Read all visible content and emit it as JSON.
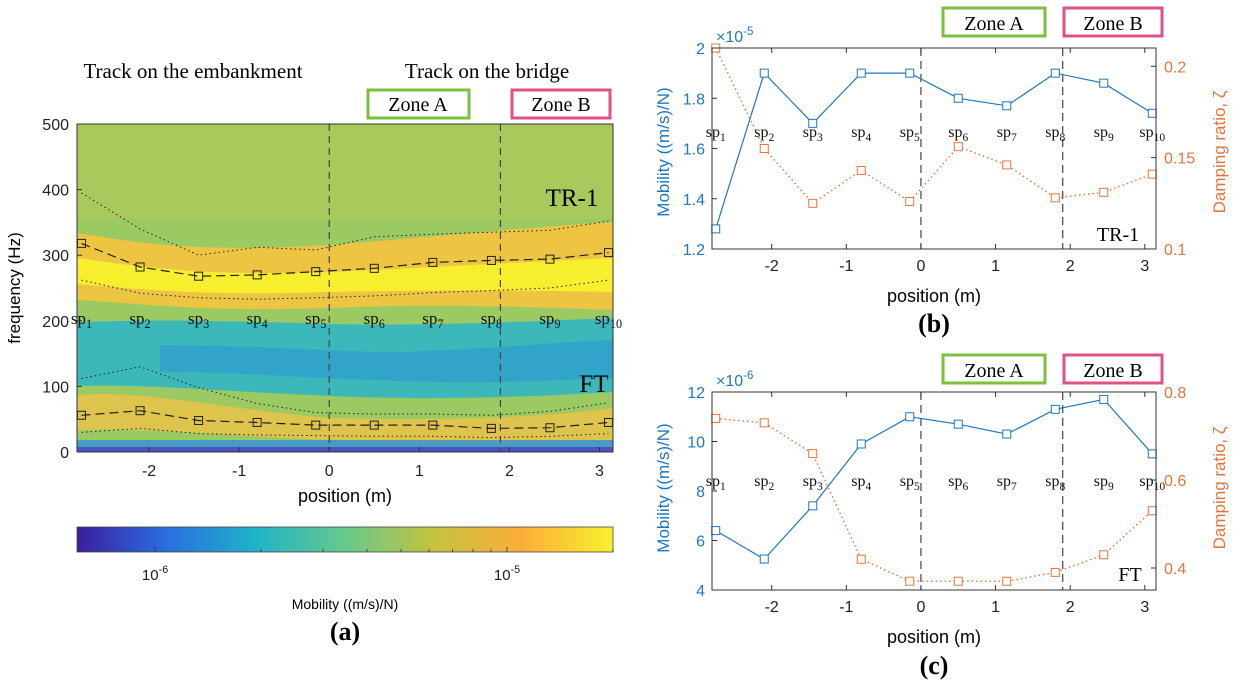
{
  "chart_data": [
    {
      "panel_label": "(a)",
      "type": "heatmap",
      "title": "",
      "xlabel": "position (m)",
      "ylabel": "frequency (Hz)",
      "xlim": [
        -2.8,
        3.15
      ],
      "ylim": [
        0,
        500
      ],
      "xticks": [
        "-2",
        "-1",
        "0",
        "1",
        "2",
        "3"
      ],
      "yticks": [
        "0",
        "100",
        "200",
        "300",
        "400",
        "500"
      ],
      "section_labels": {
        "embankment": "Track on the embankment",
        "bridge": "Track on the bridge"
      },
      "zones": [
        {
          "label": "Zone A",
          "color": "#7cbf3c"
        },
        {
          "label": "Zone B",
          "color": "#e0508a"
        }
      ],
      "zone_boundaries_m": [
        0,
        1.9
      ],
      "sensor_labels": [
        "sp1",
        "sp2",
        "sp3",
        "sp4",
        "sp5",
        "sp6",
        "sp7",
        "sp8",
        "sp9",
        "sp10"
      ],
      "positions_m": [
        -2.75,
        -2.1,
        -1.45,
        -0.8,
        -0.15,
        0.5,
        1.15,
        1.8,
        2.45,
        3.1
      ],
      "modes": [
        {
          "name": "TR-1",
          "peak_hz": [
            318,
            282,
            268,
            270,
            275,
            280,
            289,
            292,
            294,
            304
          ],
          "band_upper_hz": [
            395,
            340,
            300,
            312,
            308,
            328,
            332,
            335,
            338,
            352
          ],
          "band_lower_hz": [
            262,
            242,
            235,
            233,
            235,
            238,
            243,
            246,
            250,
            262
          ]
        },
        {
          "name": "FT",
          "peak_hz": [
            56,
            63,
            48,
            45,
            41,
            41,
            41,
            36,
            37,
            45
          ],
          "band_upper_hz": [
            112,
            130,
            98,
            74,
            60,
            58,
            58,
            56,
            62,
            75
          ],
          "band_lower_hz": [
            30,
            36,
            28,
            26,
            25,
            24,
            24,
            22,
            24,
            28
          ]
        }
      ],
      "colorbar": {
        "label": "Mobility ((m/s)/N)",
        "scale": "log",
        "range": [
          6e-07,
          2e-05
        ],
        "ticks": [
          "10",
          "10"
        ],
        "tick_exponents": [
          "-6",
          "-5"
        ],
        "tick_values": [
          1e-06,
          1e-05
        ],
        "colors": [
          "#3b1f9e",
          "#2a6ee0",
          "#1fb3c8",
          "#67c98d",
          "#c5c23f",
          "#fdae3a",
          "#f7f12b"
        ]
      }
    },
    {
      "panel_label": "(b)",
      "type": "line",
      "mode_label": "TR-1",
      "xlabel": "position (m)",
      "ylabel_left": "Mobility ((m/s)/N)",
      "ylabel_right": "Damping ratio, ζ",
      "xlim": [
        -2.8,
        3.15
      ],
      "ylim_left": [
        1.2e-05,
        2e-05
      ],
      "ylim_right": [
        0.1,
        0.21
      ],
      "left_exponent_base": "×10",
      "left_exponent_power": "-5",
      "xticks": [
        "-2",
        "-1",
        "0",
        "1",
        "2",
        "3"
      ],
      "yticks_left": [
        "1.2",
        "1.4",
        "1.6",
        "1.8",
        "2"
      ],
      "yticks_right": [
        "0.1",
        "0.15",
        "0.2"
      ],
      "zones": [
        {
          "label": "Zone A",
          "color": "#7cbf3c"
        },
        {
          "label": "Zone B",
          "color": "#e0508a"
        }
      ],
      "zone_boundaries_m": [
        0,
        1.9
      ],
      "sensor_labels": [
        "sp1",
        "sp2",
        "sp3",
        "sp4",
        "sp5",
        "sp6",
        "sp7",
        "sp8",
        "sp9",
        "sp10"
      ],
      "x": [
        -2.75,
        -2.1,
        -1.45,
        -0.8,
        -0.15,
        0.5,
        1.15,
        1.8,
        2.45,
        3.1
      ],
      "series": [
        {
          "axis": "left",
          "color": "#1f77c4",
          "values": [
            1.28e-05,
            1.9e-05,
            1.7e-05,
            1.9e-05,
            1.9e-05,
            1.8e-05,
            1.77e-05,
            1.9e-05,
            1.86e-05,
            1.74e-05
          ]
        },
        {
          "axis": "right",
          "color": "#e8743b",
          "values": [
            0.21,
            0.155,
            0.125,
            0.143,
            0.126,
            0.156,
            0.146,
            0.128,
            0.131,
            0.141
          ]
        }
      ]
    },
    {
      "panel_label": "(c)",
      "type": "line",
      "mode_label": "FT",
      "xlabel": "position (m)",
      "ylabel_left": "Mobility ((m/s)/N)",
      "ylabel_right": "Damping ratio, ζ",
      "xlim": [
        -2.8,
        3.15
      ],
      "ylim_left": [
        4e-06,
        1.2e-05
      ],
      "ylim_right": [
        0.35,
        0.8
      ],
      "left_exponent_base": "×10",
      "left_exponent_power": "-6",
      "xticks": [
        "-2",
        "-1",
        "0",
        "1",
        "2",
        "3"
      ],
      "yticks_left": [
        "4",
        "6",
        "8",
        "10",
        "12"
      ],
      "yticks_right": [
        "0.4",
        "0.6",
        "0.8"
      ],
      "zones": [
        {
          "label": "Zone A",
          "color": "#7cbf3c"
        },
        {
          "label": "Zone B",
          "color": "#e0508a"
        }
      ],
      "zone_boundaries_m": [
        0,
        1.9
      ],
      "sensor_labels": [
        "sp1",
        "sp2",
        "sp3",
        "sp4",
        "sp5",
        "sp6",
        "sp7",
        "sp8",
        "sp9",
        "sp10"
      ],
      "x": [
        -2.75,
        -2.1,
        -1.45,
        -0.8,
        -0.15,
        0.5,
        1.15,
        1.8,
        2.45,
        3.1
      ],
      "series": [
        {
          "axis": "left",
          "color": "#1f77c4",
          "values": [
            6.4e-06,
            5.25e-06,
            7.4e-06,
            9.9e-06,
            1.1e-05,
            1.07e-05,
            1.03e-05,
            1.13e-05,
            1.17e-05,
            9.5e-06
          ]
        },
        {
          "axis": "right",
          "color": "#e8743b",
          "values": [
            0.74,
            0.73,
            0.66,
            0.42,
            0.37,
            0.37,
            0.37,
            0.39,
            0.43,
            0.53
          ]
        }
      ]
    }
  ]
}
